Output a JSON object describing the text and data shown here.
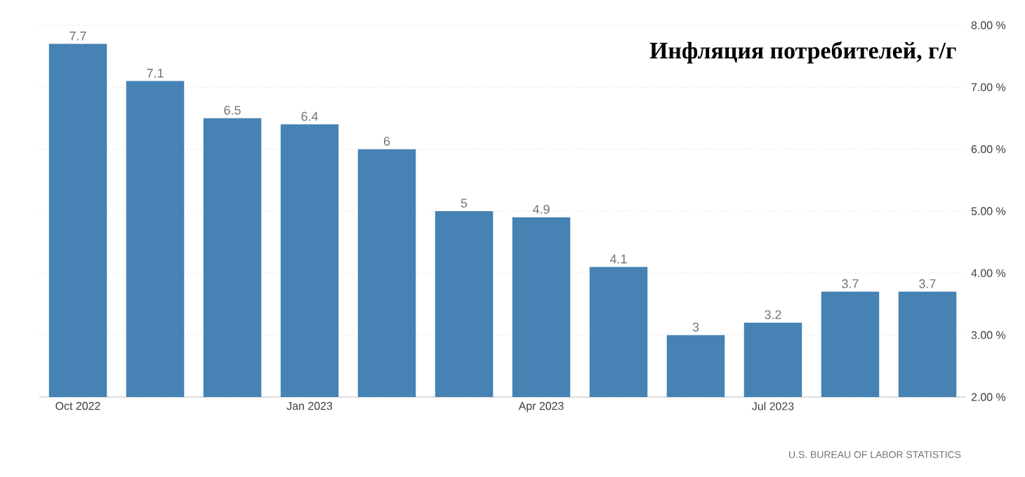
{
  "chart_data": {
    "type": "bar",
    "title": "Инфляция потребителей, г/г",
    "categories": [
      "Oct 2022",
      null,
      null,
      "Jan 2023",
      null,
      null,
      "Apr 2023",
      null,
      null,
      "Jul 2023",
      null,
      null
    ],
    "values": [
      7.7,
      7.1,
      6.5,
      6.4,
      6,
      5,
      4.9,
      4.1,
      3,
      3.2,
      3.7,
      3.7
    ],
    "color": "#4682b4",
    "ylim": [
      2,
      8
    ],
    "yticks": [
      {
        "value": 2,
        "label": "2.00 %"
      },
      {
        "value": 3,
        "label": "3.00 %"
      },
      {
        "value": 4,
        "label": "4.00 %"
      },
      {
        "value": 5,
        "label": "5.00 %"
      },
      {
        "value": 6,
        "label": "6.00 %"
      },
      {
        "value": 7,
        "label": "7.00 %"
      },
      {
        "value": 8,
        "label": "8.00 %"
      }
    ],
    "grid": "y",
    "data_labels": true,
    "annotations": [
      "U.S. BUREAU OF LABOR STATISTICS"
    ]
  }
}
